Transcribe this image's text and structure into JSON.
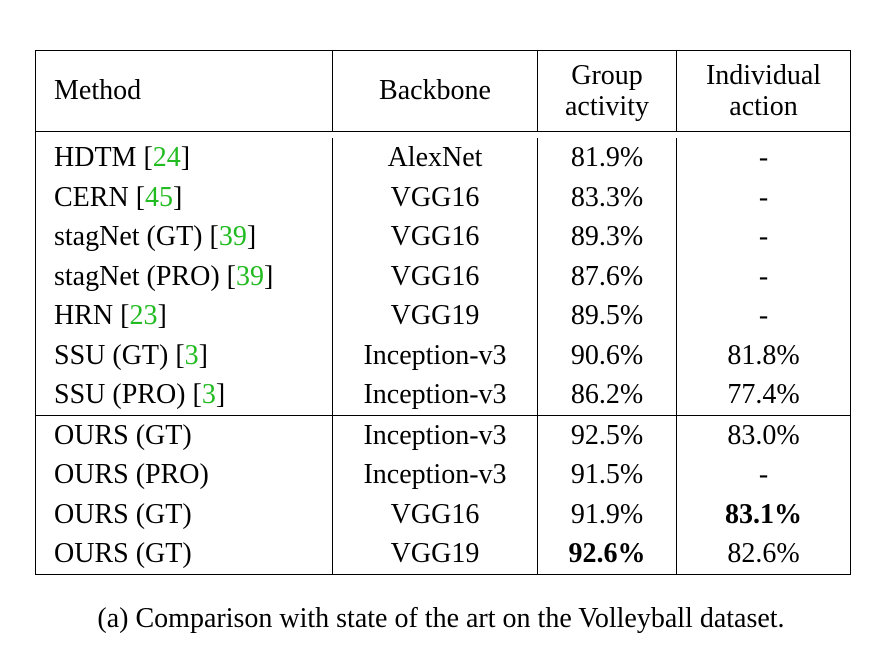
{
  "header": {
    "method": "Method",
    "backbone": "Backbone",
    "group_line1": "Group",
    "group_line2": "activity",
    "indiv_line1": "Individual",
    "indiv_line2": "action"
  },
  "rows_prior": [
    {
      "method": "HDTM",
      "ref": "24",
      "backbone": "AlexNet",
      "group": "81.9%",
      "indiv": "-"
    },
    {
      "method": "CERN",
      "ref": "45",
      "backbone": "VGG16",
      "group": "83.3%",
      "indiv": "-"
    },
    {
      "method": "stagNet (GT)",
      "ref": "39",
      "backbone": "VGG16",
      "group": "89.3%",
      "indiv": "-"
    },
    {
      "method": "stagNet (PRO)",
      "ref": "39",
      "backbone": "VGG16",
      "group": "87.6%",
      "indiv": "-"
    },
    {
      "method": "HRN",
      "ref": "23",
      "backbone": "VGG19",
      "group": "89.5%",
      "indiv": "-"
    },
    {
      "method": "SSU (GT)",
      "ref": "3",
      "backbone": "Inception-v3",
      "group": "90.6%",
      "indiv": "81.8%"
    },
    {
      "method": "SSU (PRO)",
      "ref": "3",
      "backbone": "Inception-v3",
      "group": "86.2%",
      "indiv": "77.4%"
    }
  ],
  "rows_ours": [
    {
      "method": "OURS (GT)",
      "backbone": "Inception-v3",
      "group": "92.5%",
      "indiv": "83.0%"
    },
    {
      "method": "OURS (PRO)",
      "backbone": "Inception-v3",
      "group": "91.5%",
      "indiv": "-"
    },
    {
      "method": "OURS (GT)",
      "backbone": "VGG16",
      "group": "91.9%",
      "indiv": "83.1%"
    },
    {
      "method": "OURS (GT)",
      "backbone": "VGG19",
      "group": "92.6%",
      "indiv": "82.6%"
    }
  ],
  "caption": "(a) Comparison with state of the art on the Volleyball dataset."
}
